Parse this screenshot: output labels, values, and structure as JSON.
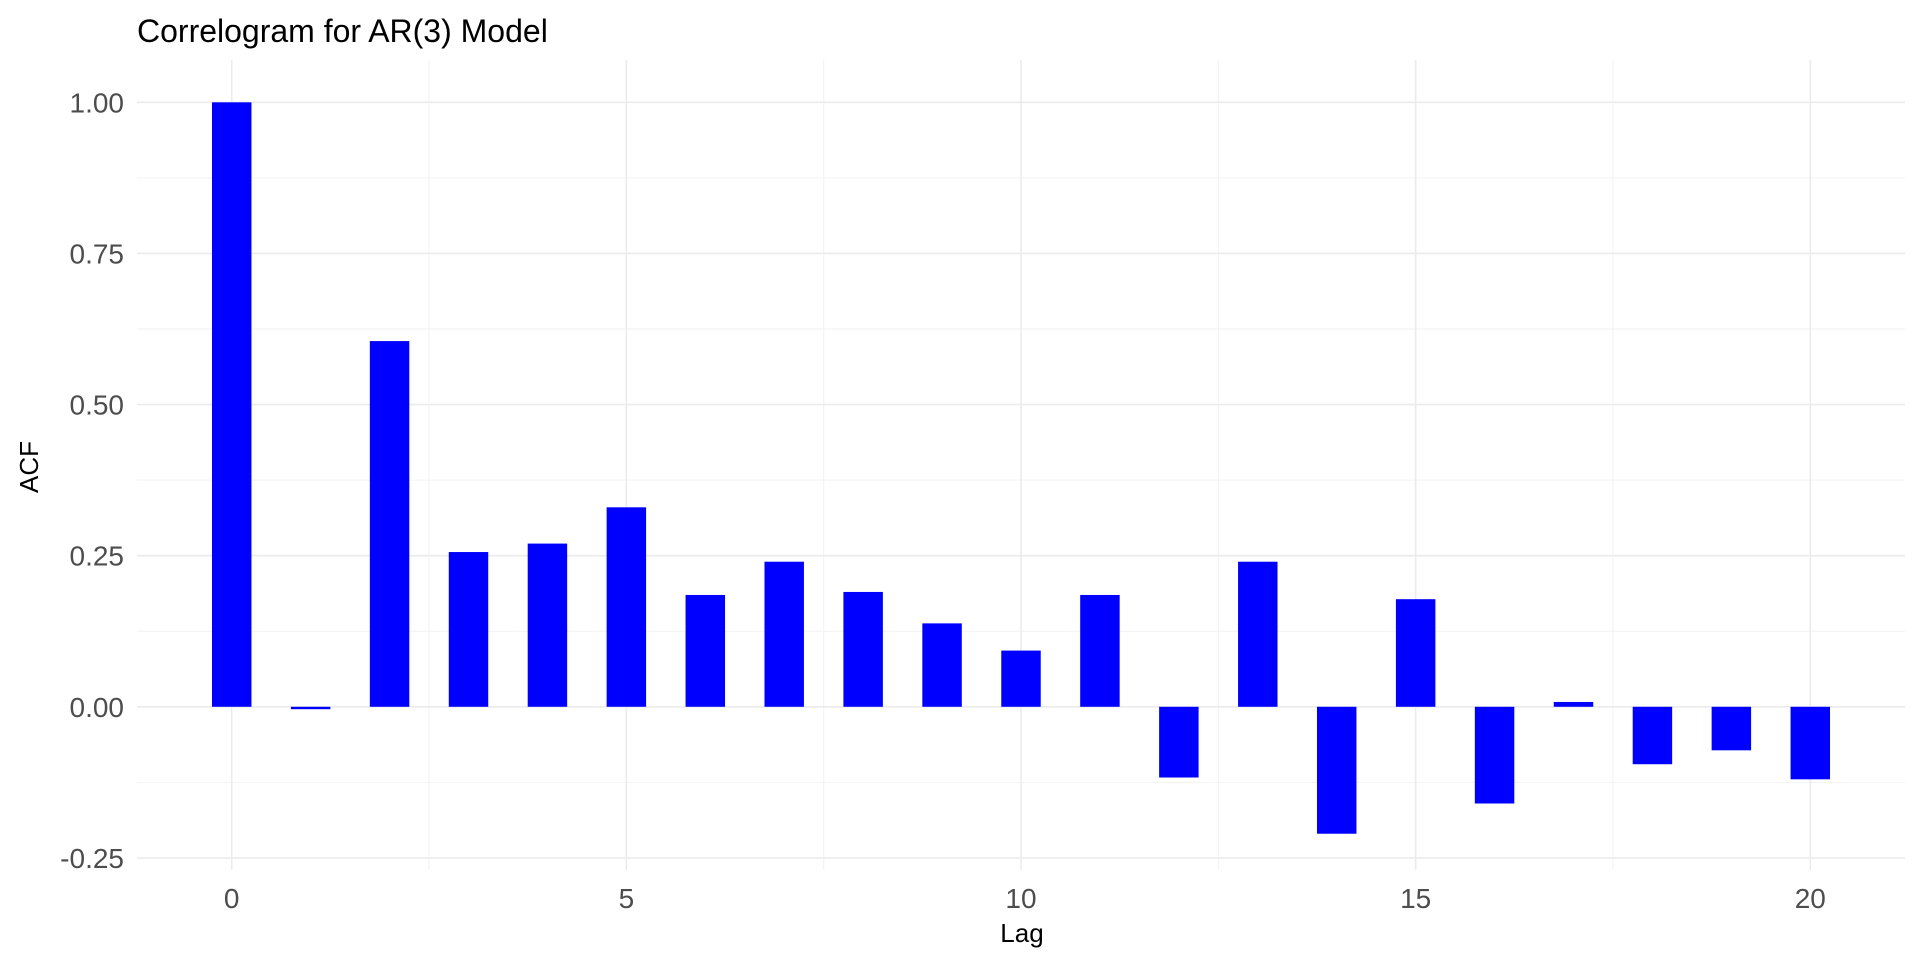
{
  "chart_data": {
    "type": "bar",
    "title": "Correlogram for AR(3) Model",
    "xlabel": "Lag",
    "ylabel": "ACF",
    "x": [
      0,
      1,
      2,
      3,
      4,
      5,
      6,
      7,
      8,
      9,
      10,
      11,
      12,
      13,
      14,
      15,
      16,
      17,
      18,
      19,
      20
    ],
    "values": [
      1.0,
      -0.004,
      0.605,
      0.256,
      0.27,
      0.33,
      0.185,
      0.24,
      0.19,
      0.138,
      0.093,
      0.185,
      -0.117,
      0.24,
      -0.21,
      0.178,
      -0.16,
      0.008,
      -0.095,
      -0.072,
      -0.12
    ],
    "xlim": [
      -1.2,
      21.2
    ],
    "ylim": [
      -0.27,
      1.07
    ],
    "x_ticks": [
      0,
      5,
      10,
      15,
      20
    ],
    "x_tick_labels": [
      "0",
      "5",
      "10",
      "15",
      "20"
    ],
    "y_ticks": [
      -0.25,
      0.0,
      0.25,
      0.5,
      0.75,
      1.0
    ],
    "y_tick_labels": [
      "-0.25",
      "0.00",
      "0.25",
      "0.50",
      "0.75",
      "1.00"
    ],
    "bar_color": "#0000ff",
    "grid": true,
    "legend": "none"
  }
}
